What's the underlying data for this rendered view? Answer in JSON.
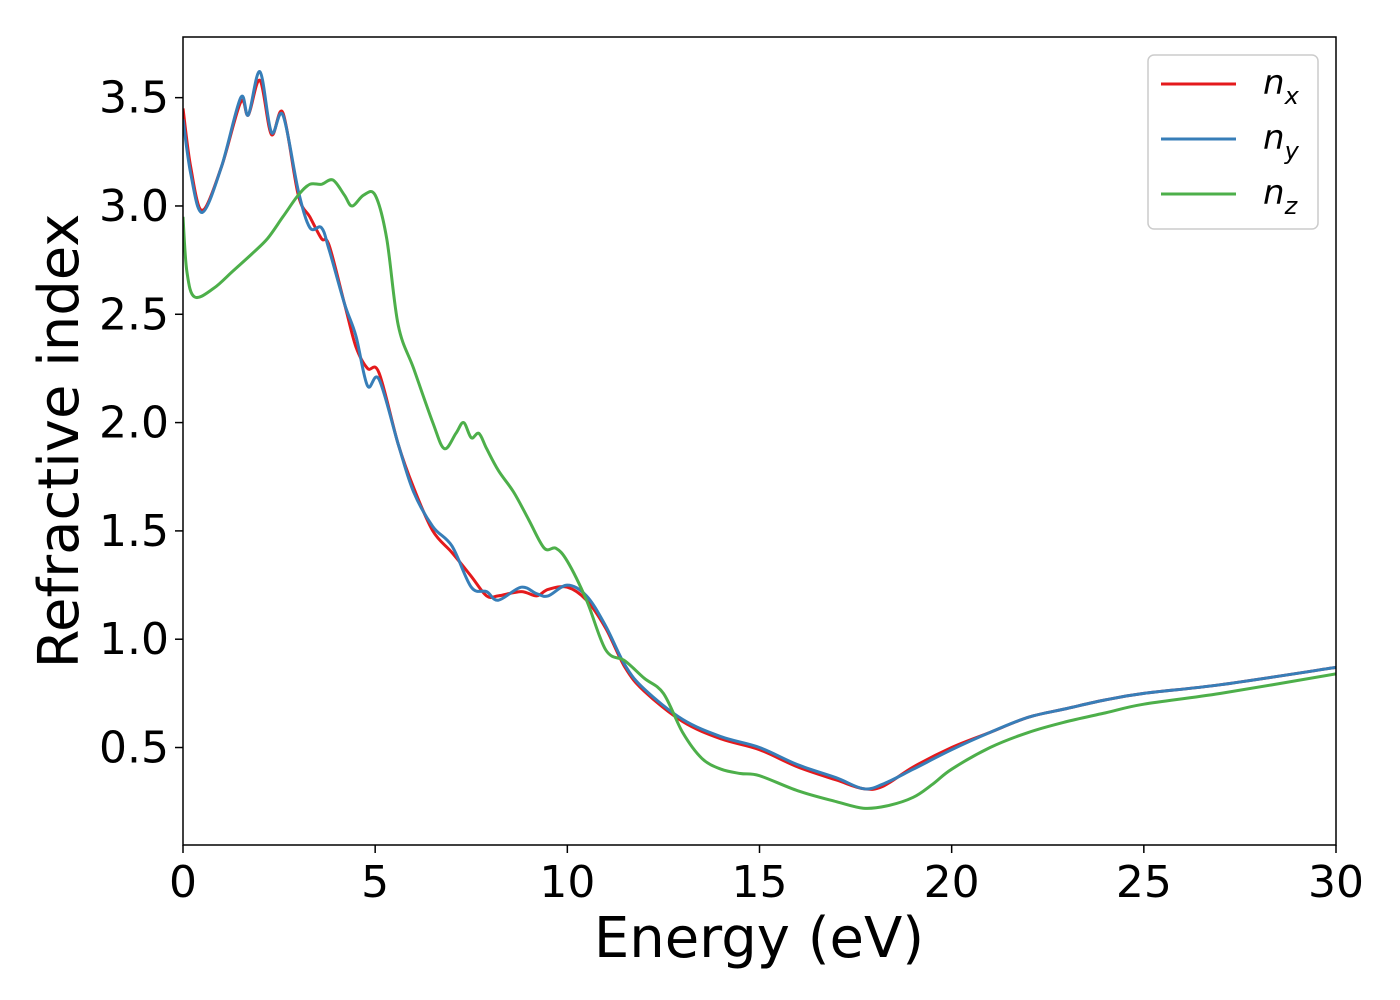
{
  "chart_data": {
    "type": "line",
    "xlabel": "Energy (eV)",
    "ylabel": "Refractive index",
    "xlim": [
      0,
      30
    ],
    "ylim": [
      0.05,
      3.78
    ],
    "xticks": [
      "0",
      "5",
      "10",
      "15",
      "20",
      "25",
      "30"
    ],
    "xtick_values": [
      0,
      5,
      10,
      15,
      20,
      25,
      30
    ],
    "yticks": [
      "0.5",
      "1.0",
      "1.5",
      "2.0",
      "2.5",
      "3.0",
      "3.5"
    ],
    "ytick_values": [
      0.5,
      1.0,
      1.5,
      2.0,
      2.5,
      3.0,
      3.5
    ],
    "grid": false,
    "legend_position": "top-right",
    "series": [
      {
        "name": "n_x",
        "label_base": "n",
        "label_sub": "x",
        "color": "#e41a1c",
        "x": [
          0,
          0.2,
          0.5,
          1.0,
          1.5,
          1.7,
          2.0,
          2.3,
          2.6,
          3.0,
          3.3,
          3.6,
          3.8,
          4.2,
          4.5,
          4.8,
          5.1,
          5.6,
          6.0,
          6.5,
          7.0,
          7.5,
          7.9,
          8.2,
          8.8,
          9.2,
          9.5,
          10.0,
          10.5,
          11.0,
          11.5,
          12.0,
          13.0,
          14.0,
          15.0,
          16.0,
          17.0,
          17.7,
          18.2,
          19.0,
          20.0,
          21.0,
          22.0,
          23.0,
          24.0,
          25.0,
          27.0,
          30.0
        ],
        "y": [
          3.45,
          3.18,
          2.98,
          3.18,
          3.48,
          3.42,
          3.58,
          3.33,
          3.43,
          3.05,
          2.95,
          2.85,
          2.82,
          2.55,
          2.35,
          2.25,
          2.23,
          1.9,
          1.7,
          1.5,
          1.4,
          1.29,
          1.2,
          1.2,
          1.22,
          1.2,
          1.23,
          1.24,
          1.18,
          1.05,
          0.87,
          0.76,
          0.62,
          0.54,
          0.49,
          0.41,
          0.35,
          0.31,
          0.32,
          0.41,
          0.5,
          0.57,
          0.64,
          0.68,
          0.72,
          0.75,
          0.79,
          0.87
        ]
      },
      {
        "name": "n_y",
        "label_base": "n",
        "label_sub": "y",
        "color": "#377eb8",
        "x": [
          0,
          0.2,
          0.5,
          1.0,
          1.5,
          1.7,
          2.0,
          2.3,
          2.6,
          3.0,
          3.3,
          3.6,
          3.8,
          4.2,
          4.5,
          4.8,
          5.1,
          5.6,
          6.0,
          6.5,
          7.0,
          7.5,
          7.9,
          8.2,
          8.8,
          9.2,
          9.5,
          10.0,
          10.5,
          11.0,
          11.5,
          12.0,
          13.0,
          14.0,
          15.0,
          16.0,
          17.0,
          17.7,
          18.2,
          19.0,
          20.0,
          21.0,
          22.0,
          23.0,
          24.0,
          25.0,
          27.0,
          30.0
        ],
        "y": [
          3.4,
          3.15,
          2.97,
          3.18,
          3.5,
          3.42,
          3.62,
          3.34,
          3.42,
          3.07,
          2.9,
          2.9,
          2.8,
          2.55,
          2.4,
          2.17,
          2.2,
          1.9,
          1.68,
          1.52,
          1.43,
          1.24,
          1.22,
          1.18,
          1.24,
          1.21,
          1.2,
          1.25,
          1.2,
          1.06,
          0.88,
          0.77,
          0.63,
          0.55,
          0.5,
          0.42,
          0.36,
          0.31,
          0.33,
          0.4,
          0.49,
          0.57,
          0.64,
          0.68,
          0.72,
          0.75,
          0.79,
          0.87
        ]
      },
      {
        "name": "n_z",
        "label_base": "n",
        "label_sub": "z",
        "color": "#4daf4a",
        "x": [
          0,
          0.1,
          0.3,
          0.8,
          1.3,
          1.8,
          2.2,
          2.6,
          3.0,
          3.3,
          3.6,
          3.9,
          4.2,
          4.4,
          4.7,
          5.0,
          5.3,
          5.6,
          6.0,
          6.5,
          6.8,
          7.1,
          7.3,
          7.5,
          7.7,
          7.9,
          8.2,
          8.6,
          9.0,
          9.4,
          9.7,
          10.0,
          10.5,
          11.0,
          11.5,
          12.0,
          12.5,
          13.0,
          13.5,
          14.0,
          14.5,
          15.0,
          16.0,
          17.0,
          17.7,
          18.3,
          19.0,
          19.5,
          20.0,
          21.0,
          22.0,
          23.0,
          24.0,
          25.0,
          27.0,
          30.0
        ],
        "y": [
          2.95,
          2.7,
          2.58,
          2.62,
          2.7,
          2.78,
          2.85,
          2.95,
          3.05,
          3.1,
          3.1,
          3.12,
          3.05,
          3.0,
          3.05,
          3.05,
          2.85,
          2.45,
          2.25,
          2.0,
          1.88,
          1.95,
          2.0,
          1.93,
          1.95,
          1.88,
          1.78,
          1.68,
          1.55,
          1.42,
          1.42,
          1.36,
          1.18,
          0.95,
          0.9,
          0.82,
          0.75,
          0.57,
          0.45,
          0.4,
          0.38,
          0.37,
          0.3,
          0.25,
          0.22,
          0.23,
          0.27,
          0.33,
          0.4,
          0.5,
          0.57,
          0.62,
          0.66,
          0.7,
          0.75,
          0.84
        ]
      }
    ]
  }
}
